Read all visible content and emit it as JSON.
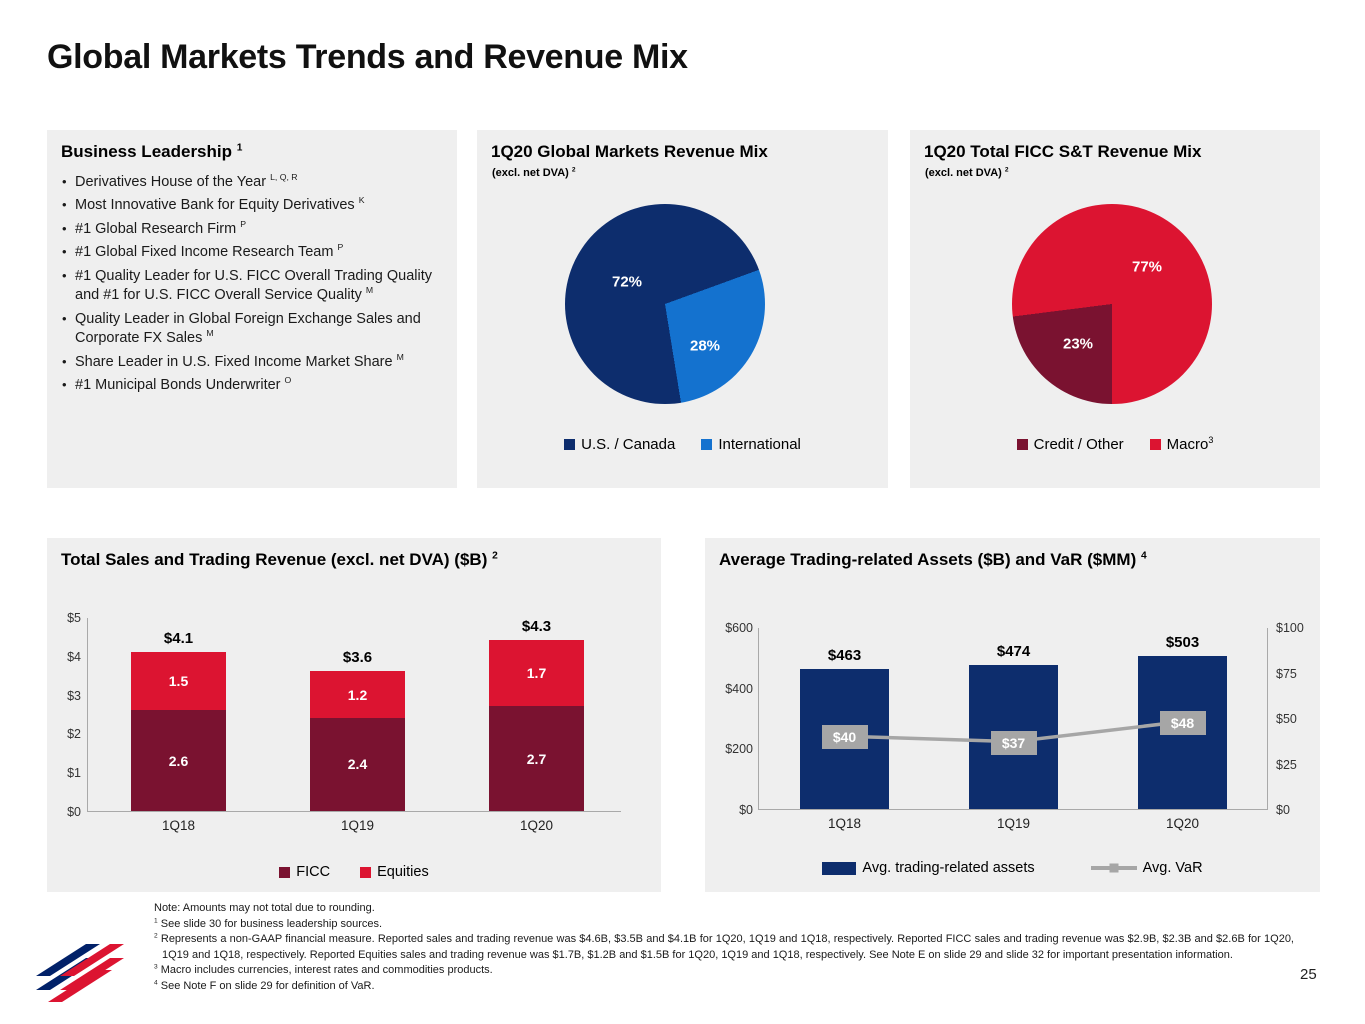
{
  "slide": {
    "title": "Global Markets Trends and Revenue Mix",
    "page_number": "25"
  },
  "leadership": {
    "title": "Business Leadership",
    "title_sup": "1",
    "items": [
      {
        "text": "Derivatives House of the Year",
        "sup": "L, Q, R"
      },
      {
        "text": "Most Innovative Bank for Equity Derivatives",
        "sup": "K"
      },
      {
        "text": "#1 Global Research Firm",
        "sup": "P"
      },
      {
        "text": "#1 Global Fixed Income Research Team",
        "sup": "P"
      },
      {
        "text": "#1 Quality Leader for U.S. FICC Overall Trading Quality and #1 for U.S. FICC Overall Service Quality",
        "sup": "M"
      },
      {
        "text": "Quality Leader in Global Foreign Exchange Sales and Corporate FX Sales",
        "sup": "M"
      },
      {
        "text": "Share Leader in U.S. Fixed Income Market Share",
        "sup": "M"
      },
      {
        "text": "#1 Municipal Bonds Underwriter",
        "sup": "O"
      }
    ]
  },
  "chart_data": [
    {
      "type": "pie",
      "title": "1Q20 Global Markets Revenue Mix",
      "subtitle": "(excl. net DVA)",
      "subtitle_sup": "2",
      "slices": [
        {
          "label": "U.S. / Canada",
          "value": 72,
          "color": "#0d2d6d"
        },
        {
          "label": "International",
          "value": 28,
          "color": "#1472cf"
        }
      ],
      "legend_position": "bottom"
    },
    {
      "type": "pie",
      "title": "1Q20 Total FICC S&T Revenue Mix",
      "subtitle": "(excl. net DVA)",
      "subtitle_sup": "2",
      "slices": [
        {
          "label": "Credit / Other",
          "value": 23,
          "color": "#7a1230"
        },
        {
          "label": "Macro",
          "legend_sup": "3",
          "value": 77,
          "color": "#dc1431"
        }
      ],
      "legend_position": "bottom"
    },
    {
      "type": "bar",
      "stacked": true,
      "title": "Total Sales and Trading Revenue (excl. net DVA) ($B)",
      "title_sup": "2",
      "categories": [
        "1Q18",
        "1Q19",
        "1Q20"
      ],
      "series": [
        {
          "name": "FICC",
          "color": "#7a1230",
          "values": [
            2.6,
            2.4,
            2.7
          ]
        },
        {
          "name": "Equities",
          "color": "#dc1431",
          "values": [
            1.5,
            1.2,
            1.7
          ]
        }
      ],
      "totals": [
        "$4.1",
        "$3.6",
        "$4.3"
      ],
      "y_ticks": [
        "$5",
        "$4",
        "$3",
        "$2",
        "$1",
        "$0"
      ],
      "ylim": [
        0,
        5
      ],
      "legend_position": "bottom"
    },
    {
      "type": "bar-line",
      "title": "Average Trading-related Assets ($B) and VaR ($MM)",
      "title_sup": "4",
      "categories": [
        "1Q18",
        "1Q19",
        "1Q20"
      ],
      "bars": {
        "name": "Avg. trading-related assets",
        "color": "#0d2d6d",
        "values": [
          463,
          474,
          503
        ],
        "labels": [
          "$463",
          "$474",
          "$503"
        ],
        "ylim": [
          0,
          600
        ],
        "y_ticks": [
          "$600",
          "$400",
          "$200",
          "$0"
        ]
      },
      "line": {
        "name": "Avg. VaR",
        "color": "#a6a6a6",
        "values": [
          40,
          37,
          48
        ],
        "labels": [
          "$40",
          "$37",
          "$48"
        ],
        "ylim": [
          0,
          100
        ],
        "y_ticks": [
          "$100",
          "$75",
          "$50",
          "$25",
          "$0"
        ]
      },
      "legend_position": "bottom"
    }
  ],
  "footnotes": {
    "note": "Note: Amounts may not total due to rounding.",
    "fn1": {
      "sup": "1",
      "text": "See slide 30 for business leadership sources."
    },
    "fn2": {
      "sup": "2",
      "text": "Represents a non-GAAP financial measure. Reported sales and trading revenue was $4.6B, $3.5B and $4.1B for 1Q20, 1Q19 and 1Q18, respectively. Reported FICC sales and trading revenue was $2.9B, $2.3B and $2.6B for 1Q20, 1Q19 and 1Q18, respectively. Reported Equities sales and trading revenue was $1.7B, $1.2B and $1.5B for 1Q20, 1Q19 and 1Q18, respectively. See Note E on slide 29 and slide 32 for important presentation information."
    },
    "fn3": {
      "sup": "3",
      "text": "Macro includes currencies, interest rates and commodities products."
    },
    "fn4": {
      "sup": "4",
      "text": "See Note F on slide 29 for definition of VaR."
    }
  },
  "colors": {
    "navy": "#0d2d6d",
    "blue": "#1472cf",
    "red": "#dc1431",
    "maroon": "#7a1230",
    "gray": "#a6a6a6",
    "panel_bg": "#efefef"
  }
}
